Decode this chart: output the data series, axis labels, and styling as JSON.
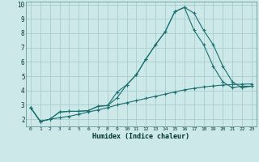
{
  "xlabel": "Humidex (Indice chaleur)",
  "bg_color": "#cce8e8",
  "grid_color": "#aacccc",
  "line_color": "#1a7070",
  "xlim": [
    -0.5,
    23.5
  ],
  "ylim": [
    1.5,
    10.2
  ],
  "xticks": [
    0,
    1,
    2,
    3,
    4,
    5,
    6,
    7,
    8,
    9,
    10,
    11,
    12,
    13,
    14,
    15,
    16,
    17,
    18,
    19,
    20,
    21,
    22,
    23
  ],
  "yticks": [
    2,
    3,
    4,
    5,
    6,
    7,
    8,
    9,
    10
  ],
  "line1_x": [
    0,
    1,
    2,
    3,
    4,
    5,
    6,
    7,
    8,
    9,
    10,
    11,
    12,
    13,
    14,
    15,
    16,
    17,
    18,
    19,
    20,
    21,
    22,
    23
  ],
  "line1_y": [
    2.8,
    1.85,
    2.0,
    2.5,
    2.55,
    2.55,
    2.6,
    2.9,
    2.95,
    3.9,
    4.4,
    5.1,
    6.2,
    7.2,
    8.1,
    9.5,
    9.8,
    9.4,
    8.2,
    7.2,
    5.7,
    4.6,
    4.2,
    4.3
  ],
  "line2_x": [
    0,
    1,
    2,
    3,
    4,
    5,
    6,
    7,
    8,
    9,
    10,
    11,
    12,
    13,
    14,
    15,
    16,
    17,
    18,
    19,
    20,
    21,
    22,
    23
  ],
  "line2_y": [
    2.8,
    1.85,
    2.0,
    2.5,
    2.55,
    2.55,
    2.6,
    2.9,
    2.95,
    3.5,
    4.4,
    5.1,
    6.2,
    7.2,
    8.1,
    9.5,
    9.8,
    8.2,
    7.2,
    5.7,
    4.6,
    4.2,
    4.3,
    4.3
  ],
  "line3_x": [
    0,
    1,
    2,
    3,
    4,
    5,
    6,
    7,
    8,
    9,
    10,
    11,
    12,
    13,
    14,
    15,
    16,
    17,
    18,
    19,
    20,
    21,
    22,
    23
  ],
  "line3_y": [
    2.8,
    1.85,
    2.0,
    2.1,
    2.2,
    2.35,
    2.5,
    2.65,
    2.8,
    3.0,
    3.15,
    3.3,
    3.45,
    3.6,
    3.75,
    3.9,
    4.05,
    4.15,
    4.25,
    4.32,
    4.38,
    4.42,
    4.44,
    4.46
  ]
}
